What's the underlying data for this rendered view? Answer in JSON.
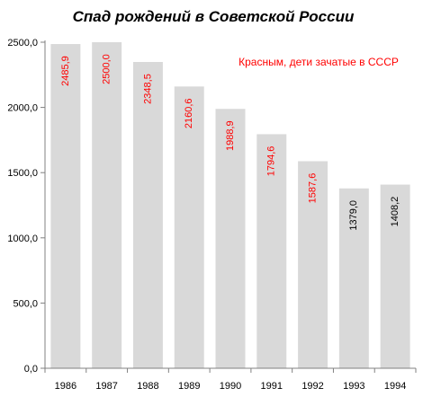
{
  "chart_data": {
    "type": "bar",
    "title": "Спад  рождений в Советской России",
    "annotation": "Красным, дети зачатые в СССР",
    "categories": [
      "1986",
      "1987",
      "1988",
      "1989",
      "1990",
      "1991",
      "1992",
      "1993",
      "1994"
    ],
    "values": [
      2485.9,
      2500.0,
      2348.5,
      2160.6,
      1988.9,
      1794.6,
      1587.6,
      1379.0,
      1408.2
    ],
    "value_labels": [
      "2485,9",
      "2500,0",
      "2348,5",
      "2160,6",
      "1988,9",
      "1794,6",
      "1587,6",
      "1379,0",
      "1408,2"
    ],
    "conceived_in_ussr": [
      true,
      true,
      true,
      true,
      true,
      true,
      true,
      false,
      false
    ],
    "ylim": [
      0,
      2500
    ],
    "y_ticks": [
      0,
      500,
      1000,
      1500,
      2000,
      2500
    ],
    "y_tick_labels": [
      "0,0",
      "500,0",
      "1000,0",
      "1500,0",
      "2000,0",
      "2500,0"
    ],
    "xlabel": "",
    "ylabel": "",
    "grid": false,
    "legend": false,
    "colors": {
      "bar": "#d9d9d9",
      "red_label": "#ff0000",
      "black_label": "#000000",
      "axis": "#808080"
    }
  }
}
